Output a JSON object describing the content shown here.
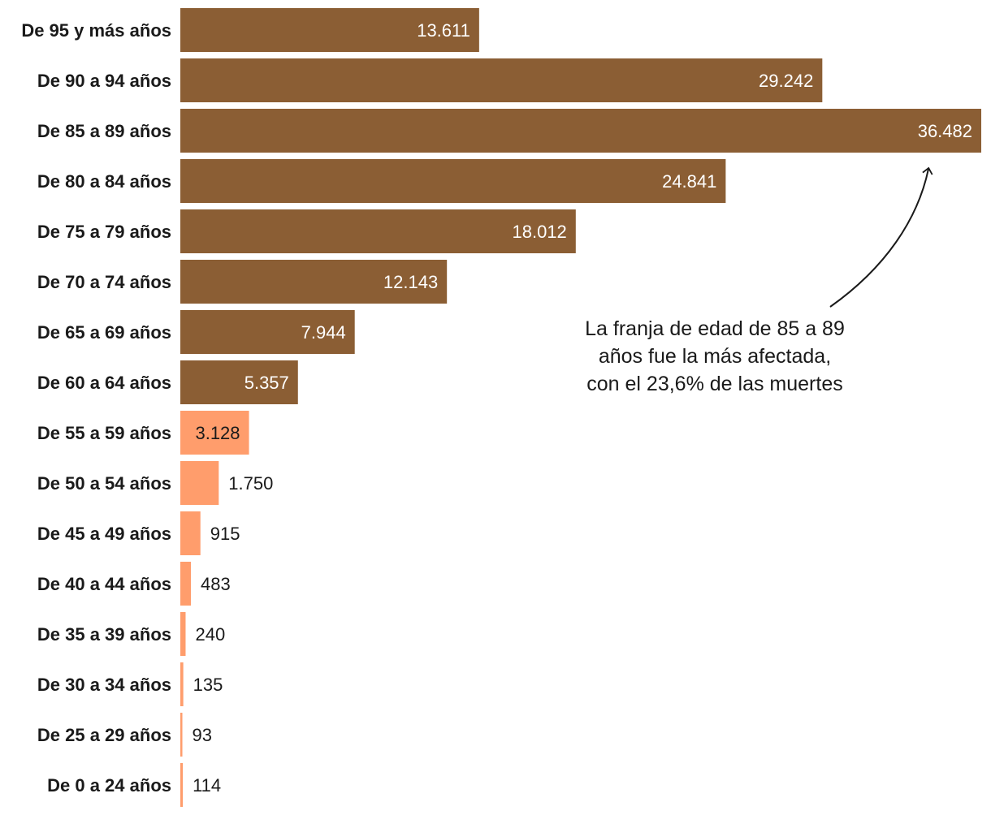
{
  "chart_data": {
    "type": "bar",
    "orientation": "horizontal",
    "title": "",
    "xlabel": "",
    "ylabel": "",
    "categories": [
      "De 95 y más años",
      "De 90 a 94 años",
      "De 85 a 89 años",
      "De 80 a 84 años",
      "De 75 a 79 años",
      "De 70 a 74 años",
      "De 65 a 69 años",
      "De 60 a 64 años",
      "De 55 a 59 años",
      "De 50 a 54 años",
      "De 45 a 49 años",
      "De 40 a 44 años",
      "De 35 a 39 años",
      "De 30 a 34 años",
      "De 25 a 29 años",
      "De 0 a 24 años"
    ],
    "values": [
      13611,
      29242,
      36482,
      24841,
      18012,
      12143,
      7944,
      5357,
      3128,
      1750,
      915,
      483,
      240,
      135,
      93,
      114
    ],
    "value_labels": [
      "13.611",
      "29.242",
      "36.482",
      "24.841",
      "18.012",
      "12.143",
      "7.944",
      "5.357",
      "3.128",
      "1.750",
      "915",
      "483",
      "240",
      "135",
      "93",
      "114"
    ],
    "xlim": [
      0,
      36482
    ],
    "grid": false,
    "legend": "none",
    "colors": {
      "older": "#8b5e34",
      "younger": "#ff9d6c"
    },
    "older_group_count": 8,
    "annotation": {
      "lines": [
        "La franja de edad de 85 a 89",
        "años fue la más afectada,",
        "con el 23,6% de las muertes"
      ]
    }
  }
}
